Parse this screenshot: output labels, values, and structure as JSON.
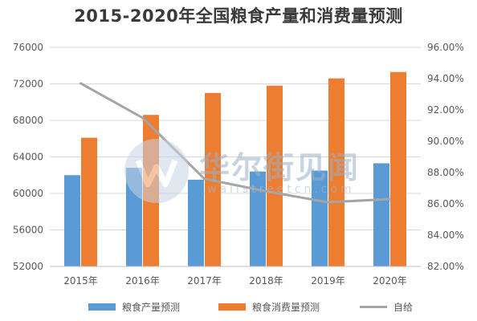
{
  "chart_data": {
    "type": "bar",
    "title": "2015-2020年全国粮食产量和消费量预测",
    "categories": [
      "2015年",
      "2016年",
      "2017年",
      "2018年",
      "2019年",
      "2020年"
    ],
    "series": [
      {
        "name": "粮食产量预测",
        "type": "bar",
        "axis": "left",
        "color": "#5b9bd5",
        "values": [
          62000,
          62800,
          61500,
          62400,
          62500,
          63300
        ]
      },
      {
        "name": "粮食消费量预测",
        "type": "bar",
        "axis": "left",
        "color": "#ed7d31",
        "values": [
          66100,
          68600,
          71000,
          71800,
          72600,
          73300
        ]
      },
      {
        "name": "自给",
        "type": "line",
        "axis": "right",
        "color": "#a5a5a5",
        "values": [
          93.7,
          91.5,
          87.6,
          86.8,
          86.1,
          86.3
        ]
      }
    ],
    "yleft": {
      "min": 52000,
      "max": 76000,
      "step": 4000,
      "ticks": [
        "52000",
        "56000",
        "60000",
        "64000",
        "68000",
        "72000",
        "76000"
      ]
    },
    "yright": {
      "min": 82,
      "max": 96,
      "step": 2,
      "ticks": [
        "82.00%",
        "84.00%",
        "86.00%",
        "88.00%",
        "90.00%",
        "92.00%",
        "94.00%",
        "96.00%"
      ]
    },
    "grid": true,
    "legend": "bottom"
  },
  "watermark": {
    "text": "华尔街见闻",
    "sub": "wallstreetcn.com"
  }
}
